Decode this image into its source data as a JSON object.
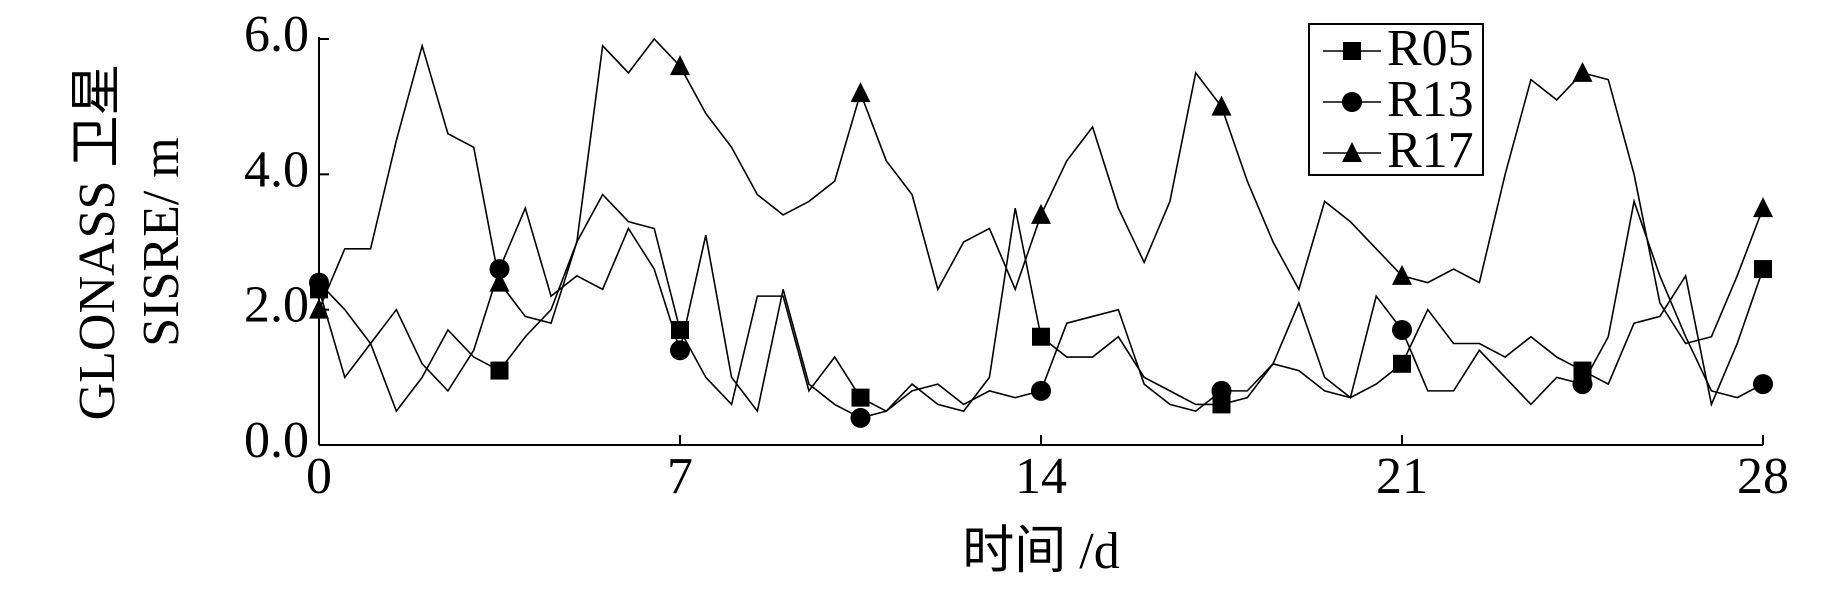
{
  "chart_data": {
    "type": "line",
    "ylabel": [
      "GLONASS 卫星",
      "SISRE/ m"
    ],
    "xlabel": "时间 /d",
    "x": [
      0,
      0.5,
      1,
      1.5,
      2,
      2.5,
      3,
      3.5,
      4,
      4.5,
      5,
      5.5,
      6,
      6.5,
      7,
      7.5,
      8,
      8.5,
      9,
      9.5,
      10,
      10.5,
      11,
      11.5,
      12,
      12.5,
      13,
      13.5,
      14,
      14.5,
      15,
      15.5,
      16,
      16.5,
      17,
      17.5,
      18,
      18.5,
      19,
      19.5,
      20,
      20.5,
      21,
      21.5,
      22,
      22.5,
      23,
      23.5,
      24,
      24.5,
      25,
      25.5,
      26,
      26.5,
      27,
      27.5,
      28
    ],
    "series": [
      {
        "name": "R05",
        "marker": "square",
        "color": "#000000",
        "values": [
          2.3,
          1.0,
          1.5,
          0.5,
          1.0,
          1.7,
          1.3,
          1.1,
          1.6,
          2.0,
          3.0,
          3.7,
          3.3,
          3.2,
          1.7,
          1.0,
          0.6,
          2.2,
          2.2,
          0.8,
          1.3,
          0.7,
          0.5,
          0.9,
          0.6,
          0.5,
          1.0,
          3.5,
          1.6,
          1.3,
          1.3,
          1.6,
          1.0,
          0.8,
          0.6,
          0.6,
          0.7,
          1.2,
          1.1,
          0.8,
          0.7,
          0.9,
          1.2,
          2.0,
          1.5,
          1.5,
          1.3,
          1.6,
          1.3,
          1.1,
          0.9,
          1.8,
          1.9,
          2.5,
          0.6,
          1.5,
          2.6
        ]
      },
      {
        "name": "R13",
        "marker": "circle",
        "color": "#000000",
        "values": [
          2.4,
          2.0,
          1.5,
          2.0,
          1.2,
          0.8,
          1.4,
          2.6,
          3.5,
          2.2,
          2.5,
          2.3,
          3.2,
          2.6,
          1.4,
          3.1,
          1.0,
          0.5,
          2.3,
          0.9,
          0.6,
          0.4,
          0.5,
          0.8,
          0.9,
          0.6,
          0.8,
          0.7,
          0.8,
          1.8,
          1.9,
          2.0,
          0.9,
          0.6,
          0.5,
          0.8,
          0.8,
          1.2,
          2.1,
          1.0,
          0.7,
          2.2,
          1.7,
          0.8,
          0.8,
          1.4,
          1.0,
          0.6,
          1.0,
          0.9,
          1.6,
          3.6,
          2.5,
          1.6,
          0.8,
          0.7,
          0.9
        ]
      },
      {
        "name": "R17",
        "marker": "triangle",
        "color": "#000000",
        "values": [
          2.0,
          2.9,
          2.9,
          4.5,
          5.9,
          4.6,
          4.4,
          2.4,
          1.9,
          1.8,
          3.0,
          5.9,
          5.5,
          6.0,
          5.6,
          4.9,
          4.4,
          3.7,
          3.4,
          3.6,
          3.9,
          5.2,
          4.2,
          3.7,
          2.3,
          3.0,
          3.2,
          2.3,
          3.4,
          4.2,
          4.7,
          3.5,
          2.7,
          3.6,
          5.5,
          5.0,
          3.9,
          3.0,
          2.3,
          3.6,
          3.3,
          2.9,
          2.5,
          2.4,
          2.6,
          2.4,
          4.0,
          5.4,
          5.1,
          5.5,
          5.4,
          4.0,
          2.1,
          1.5,
          1.6,
          2.5,
          3.5
        ]
      }
    ],
    "markevery": 7,
    "xlim": [
      0,
      28
    ],
    "xticks": [
      0,
      7,
      14,
      21,
      28
    ],
    "ylim": [
      0,
      6
    ],
    "yticks": [
      {
        "value": 0,
        "label": "0.0"
      },
      {
        "value": 2,
        "label": "2.0"
      },
      {
        "value": 4,
        "label": "4.0"
      },
      {
        "value": 6,
        "label": "6.0"
      }
    ],
    "legend": "upper right",
    "grid": false
  }
}
